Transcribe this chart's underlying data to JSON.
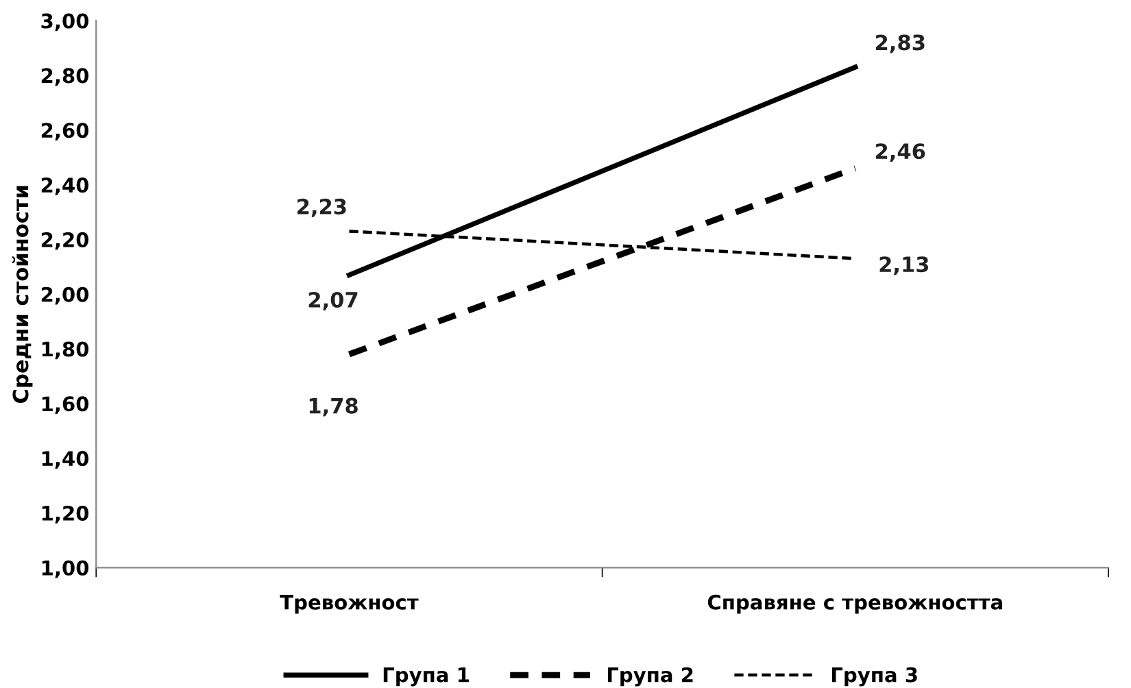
{
  "chart_data": {
    "type": "line",
    "ylabel": "Средни стойности",
    "categories": [
      "Тревожност",
      "Справяне с тревожността"
    ],
    "series": [
      {
        "name": "Група 1",
        "color": "#000000",
        "values": [
          2.07,
          2.83
        ],
        "value_labels": [
          "2,07",
          "2,83"
        ],
        "line_style": "solid"
      },
      {
        "name": "Група 2",
        "color": "#000000",
        "values": [
          1.78,
          2.46
        ],
        "value_labels": [
          "1,78",
          "2,46"
        ],
        "line_style": "dashed"
      },
      {
        "name": "Група 3",
        "color": "#000000",
        "values": [
          2.23,
          2.13
        ],
        "value_labels": [
          "2,23",
          "2,13"
        ],
        "line_style": "dashed"
      }
    ],
    "ylim": [
      1.0,
      3.0
    ],
    "yticks": [
      {
        "value": 1.0,
        "label": "1,00"
      },
      {
        "value": 1.2,
        "label": "1,20"
      },
      {
        "value": 1.4,
        "label": "1,40"
      },
      {
        "value": 1.6,
        "label": "1,60"
      },
      {
        "value": 1.8,
        "label": "1,80"
      },
      {
        "value": 2.0,
        "label": "2,00"
      },
      {
        "value": 2.2,
        "label": "2,20"
      },
      {
        "value": 2.4,
        "label": "2,40"
      },
      {
        "value": 2.6,
        "label": "2,60"
      },
      {
        "value": 2.8,
        "label": "2,80"
      },
      {
        "value": 3.0,
        "label": "3,00"
      }
    ],
    "grid": false,
    "legend": "bottom",
    "marker": "none"
  }
}
